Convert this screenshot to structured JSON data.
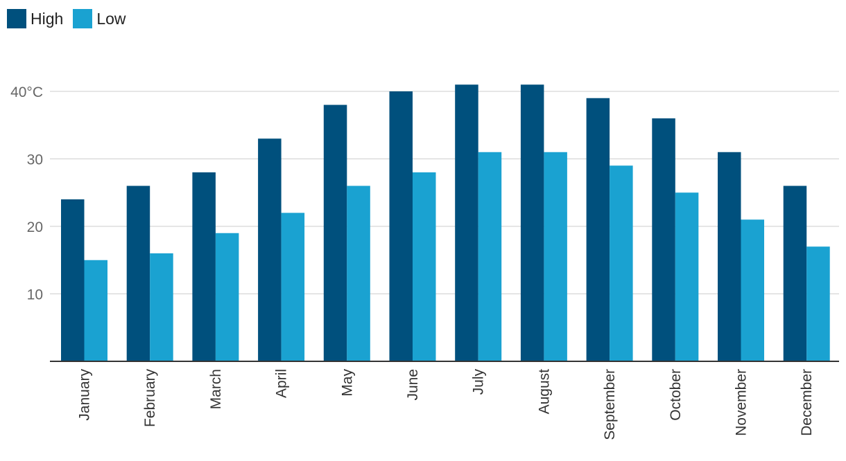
{
  "colors": {
    "high": "#00507d",
    "low": "#1aa2d1",
    "grid": "#d6d6d6",
    "axis": "#333333"
  },
  "legend": {
    "high_label": "High",
    "low_label": "Low",
    "placement": "top-left"
  },
  "chart_data": {
    "type": "bar",
    "categories": [
      "January",
      "February",
      "March",
      "April",
      "May",
      "June",
      "July",
      "August",
      "September",
      "October",
      "November",
      "December"
    ],
    "series": [
      {
        "name": "High",
        "values": [
          24,
          26,
          28,
          33,
          38,
          40,
          41,
          41,
          39,
          36,
          31,
          26
        ]
      },
      {
        "name": "Low",
        "values": [
          15,
          16,
          19,
          22,
          26,
          28,
          31,
          31,
          29,
          25,
          21,
          17
        ]
      }
    ],
    "y_ticks": [
      {
        "value": 10,
        "label": "10"
      },
      {
        "value": 20,
        "label": "20"
      },
      {
        "value": 30,
        "label": "30"
      },
      {
        "value": 40,
        "label": "40°C"
      }
    ],
    "ylim": [
      0,
      40
    ],
    "grid": true
  }
}
